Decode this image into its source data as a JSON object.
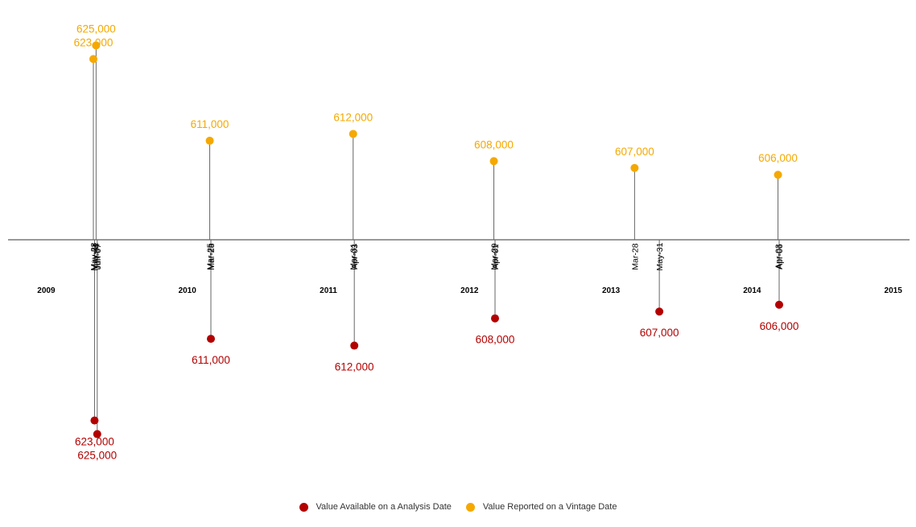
{
  "chart_data": {
    "type": "scatter",
    "title": "",
    "xlabel": "",
    "ylabel": "",
    "x_axis_type": "date",
    "xlim": [
      "2009-01-01",
      "2015-08-01"
    ],
    "x_year_labels": [
      "2009",
      "2010",
      "2011",
      "2012",
      "2013",
      "2014",
      "2015"
    ],
    "grid": false,
    "legend_position": "bottom",
    "series": [
      {
        "name": "Value Available on a Analysis Date",
        "color": "#b30000",
        "placement": "below-axis",
        "points": [
          {
            "date": "2009-05-31",
            "tick": "May-31",
            "value": 623000,
            "label": "623,000"
          },
          {
            "date": "2009-06-07",
            "tick": "Jun-07",
            "value": 625000,
            "label": "625,000"
          },
          {
            "date": "2010-03-28",
            "tick": "Mar-28",
            "value": 611000,
            "label": "611,000"
          },
          {
            "date": "2011-04-03",
            "tick": "Apr-03",
            "value": 612000,
            "label": "612,000"
          },
          {
            "date": "2012-04-01",
            "tick": "Apr-01",
            "value": 608000,
            "label": "608,000"
          },
          {
            "date": "2013-05-31",
            "tick": "May-31",
            "value": 607000,
            "label": "607,000"
          },
          {
            "date": "2014-04-06",
            "tick": "Apr-06",
            "value": 606000,
            "label": "606,000"
          }
        ]
      },
      {
        "name": "Value Reported on a Vintage Date",
        "color": "#f5a800",
        "placement": "above-axis",
        "points": [
          {
            "date": "2009-05-28",
            "tick": "May-28",
            "value": 623000,
            "label": "623,000"
          },
          {
            "date": "2009-06-04",
            "tick": "Jun-04",
            "value": 625000,
            "label": "625,000"
          },
          {
            "date": "2010-03-25",
            "tick": "Mar-25",
            "value": 611000,
            "label": "611,000"
          },
          {
            "date": "2011-03-31",
            "tick": "Mar-31",
            "value": 612000,
            "label": "612,000"
          },
          {
            "date": "2012-03-29",
            "tick": "Mar-29",
            "value": 608000,
            "label": "608,000"
          },
          {
            "date": "2013-03-28",
            "tick": "Mar-28",
            "value": 607000,
            "label": "607,000"
          },
          {
            "date": "2014-04-03",
            "tick": "Apr-03",
            "value": 606000,
            "label": "606,000"
          }
        ]
      }
    ]
  }
}
